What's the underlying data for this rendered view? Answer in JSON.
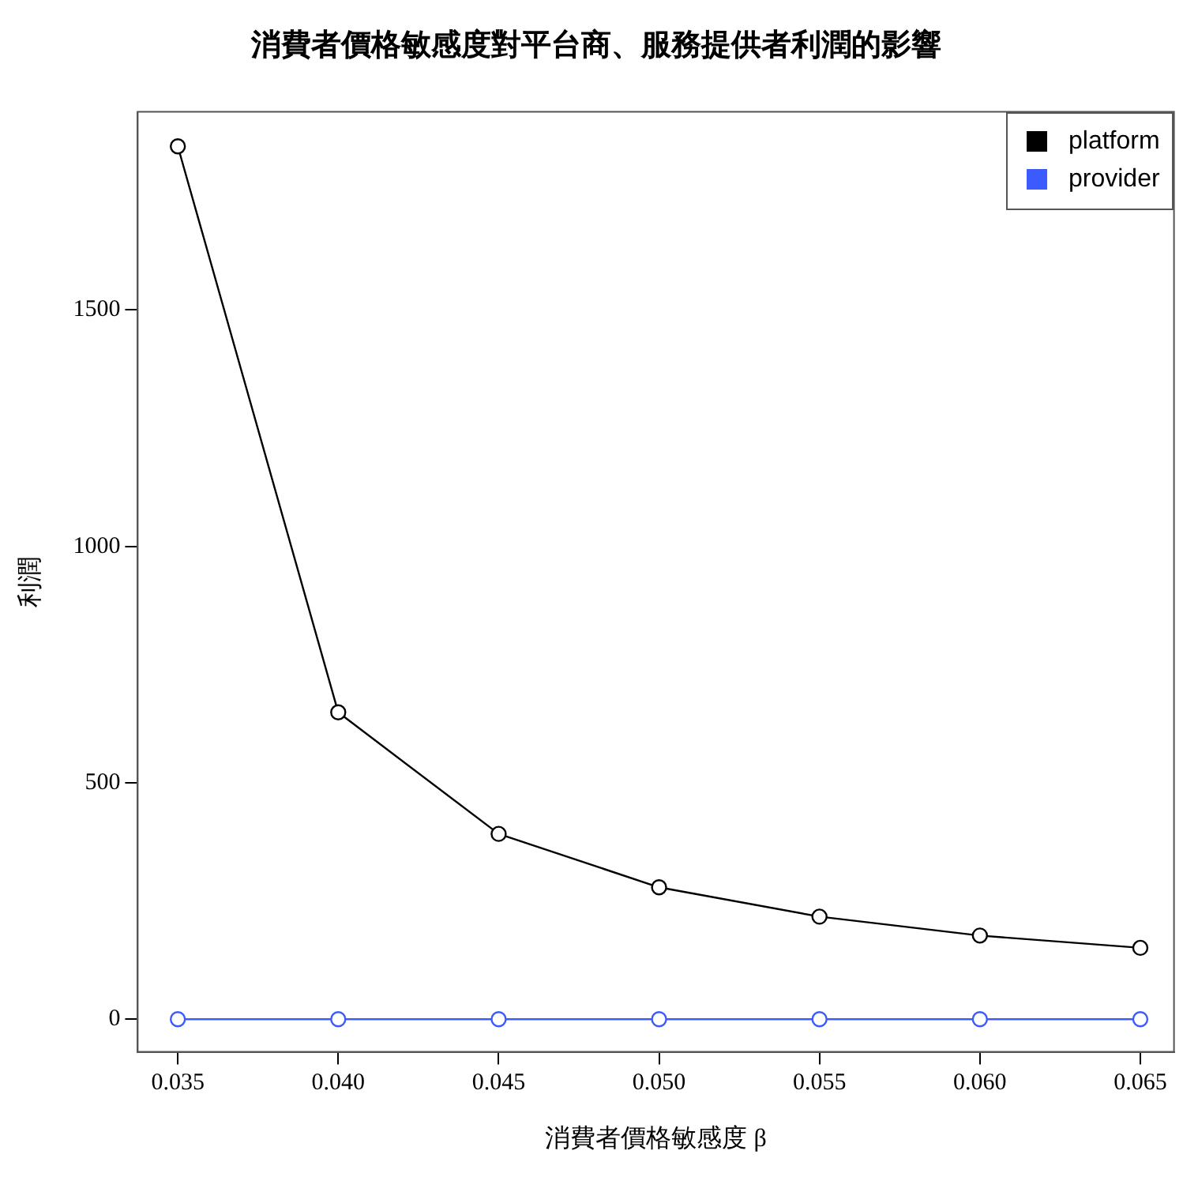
{
  "chart_data": {
    "type": "line",
    "title": "消費者價格敏感度對平台商、服務提供者利潤的影響",
    "xlabel": "消費者價格敏感度 β",
    "ylabel": "利潤",
    "x": [
      0.035,
      0.04,
      0.045,
      0.05,
      0.055,
      0.06,
      0.065
    ],
    "series": [
      {
        "name": "platform",
        "color": "#000000",
        "values": [
          1846,
          649,
          392,
          279,
          217,
          177,
          151
        ]
      },
      {
        "name": "provider",
        "color": "#3b5bff",
        "values": [
          0,
          0,
          0,
          0,
          0,
          0,
          0
        ]
      }
    ],
    "xlim": [
      0.03375,
      0.06605
    ],
    "ylim": [
      -69,
      1919
    ],
    "xticks": [
      {
        "value": 0.035,
        "label": "0.035"
      },
      {
        "value": 0.04,
        "label": "0.040"
      },
      {
        "value": 0.045,
        "label": "0.045"
      },
      {
        "value": 0.05,
        "label": "0.050"
      },
      {
        "value": 0.055,
        "label": "0.055"
      },
      {
        "value": 0.06,
        "label": "0.060"
      },
      {
        "value": 0.065,
        "label": "0.065"
      }
    ],
    "yticks": [
      0,
      500,
      1000,
      1500
    ],
    "grid": false,
    "legend": "top right",
    "marker": "circle",
    "line_style": "solid"
  }
}
